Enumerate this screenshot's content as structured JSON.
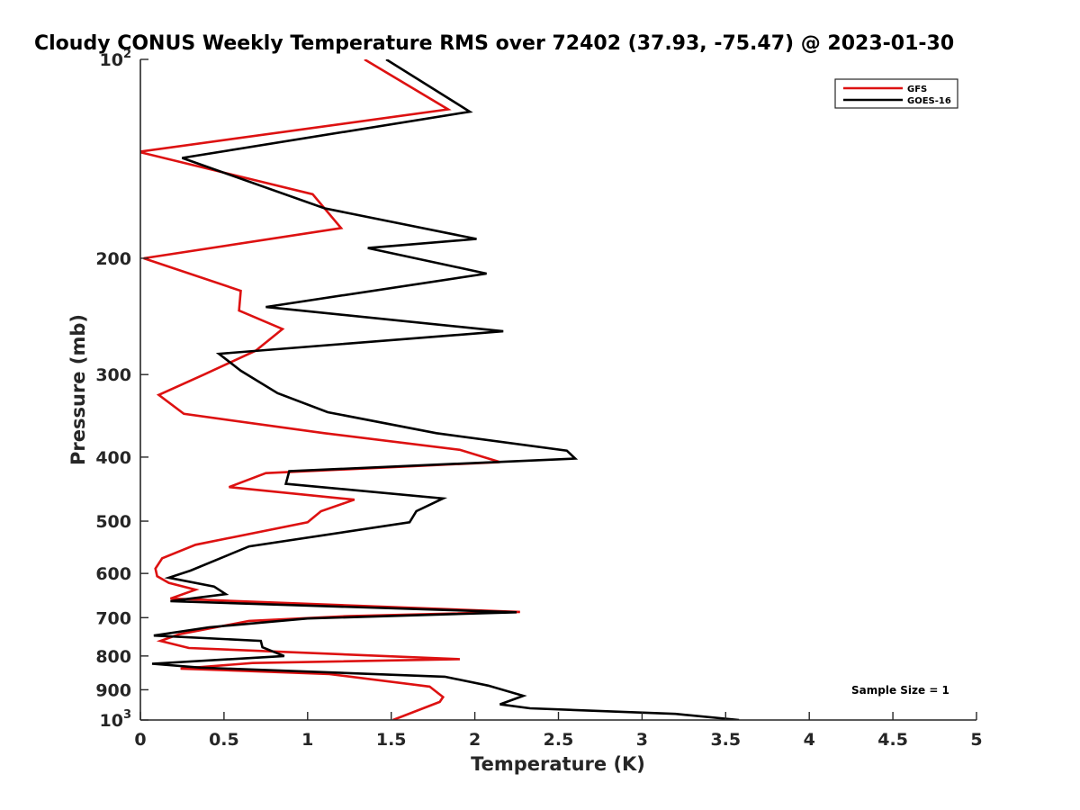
{
  "chart_data": {
    "type": "line",
    "title": "Cloudy CONUS Weekly Temperature RMS over 72402 (37.93, -75.47) @ 2023-01-30",
    "xlabel": "Temperature (K)",
    "ylabel": "Pressure (mb)",
    "xlim": [
      0,
      5
    ],
    "ylim": [
      100,
      1000
    ],
    "y_scale": "log",
    "y_direction": "reversed",
    "grid": false,
    "legend_position": "top-right",
    "x_ticks": [
      "0",
      "0.5",
      "1",
      "1.5",
      "2",
      "2.5",
      "3",
      "3.5",
      "4",
      "4.5",
      "5"
    ],
    "y_ticks": [
      {
        "value": 100,
        "label": "10",
        "exp": "2"
      },
      {
        "value": 200,
        "label": "200",
        "exp": ""
      },
      {
        "value": 300,
        "label": "300",
        "exp": ""
      },
      {
        "value": 400,
        "label": "400",
        "exp": ""
      },
      {
        "value": 500,
        "label": "500",
        "exp": ""
      },
      {
        "value": 600,
        "label": "600",
        "exp": ""
      },
      {
        "value": 700,
        "label": "700",
        "exp": ""
      },
      {
        "value": 800,
        "label": "800",
        "exp": ""
      },
      {
        "value": 900,
        "label": "900",
        "exp": ""
      },
      {
        "value": 1000,
        "label": "10",
        "exp": "3"
      }
    ],
    "series": [
      {
        "name": "GFS",
        "color": "#dd1111",
        "points": [
          [
            1.34,
            100
          ],
          [
            1.84,
            119
          ],
          [
            -0.01,
            138
          ],
          [
            1.03,
            160
          ],
          [
            1.2,
            180
          ],
          [
            0.02,
            200
          ],
          [
            0.6,
            224
          ],
          [
            0.59,
            240
          ],
          [
            0.85,
            256
          ],
          [
            0.69,
            276
          ],
          [
            0.38,
            300
          ],
          [
            0.11,
            322
          ],
          [
            0.26,
            344
          ],
          [
            1.1,
            368
          ],
          [
            1.91,
            390
          ],
          [
            2.15,
            407
          ],
          [
            0.75,
            423
          ],
          [
            0.53,
            444
          ],
          [
            1.28,
            464
          ],
          [
            1.08,
            483
          ],
          [
            1.0,
            502
          ],
          [
            0.33,
            543
          ],
          [
            0.13,
            569
          ],
          [
            0.09,
            590
          ],
          [
            0.1,
            606
          ],
          [
            0.17,
            620
          ],
          [
            0.33,
            635
          ],
          [
            0.18,
            655
          ],
          [
            2.27,
            686
          ],
          [
            1.25,
            696
          ],
          [
            0.65,
            708
          ],
          [
            0.23,
            742
          ],
          [
            0.12,
            759
          ],
          [
            0.29,
            778
          ],
          [
            1.91,
            809
          ],
          [
            0.67,
            820
          ],
          [
            0.24,
            836
          ],
          [
            1.13,
            852
          ],
          [
            1.73,
            890
          ],
          [
            1.81,
            923
          ],
          [
            1.79,
            939
          ],
          [
            1.51,
            1000
          ]
        ]
      },
      {
        "name": "GOES-16",
        "color": "#000000",
        "points": [
          [
            1.47,
            100
          ],
          [
            1.97,
            120
          ],
          [
            0.25,
            141
          ],
          [
            1.1,
            168
          ],
          [
            2.01,
            187
          ],
          [
            1.36,
            193
          ],
          [
            2.07,
            211
          ],
          [
            0.75,
            237
          ],
          [
            2.17,
            258
          ],
          [
            0.47,
            279
          ],
          [
            0.6,
            296
          ],
          [
            0.82,
            320
          ],
          [
            1.12,
            342
          ],
          [
            1.77,
            368
          ],
          [
            2.55,
            391
          ],
          [
            2.6,
            402
          ],
          [
            0.89,
            420
          ],
          [
            0.87,
            439
          ],
          [
            1.81,
            462
          ],
          [
            1.65,
            483
          ],
          [
            1.61,
            502
          ],
          [
            0.65,
            546
          ],
          [
            0.3,
            594
          ],
          [
            0.17,
            609
          ],
          [
            0.44,
            628
          ],
          [
            0.51,
            645
          ],
          [
            0.28,
            656
          ],
          [
            0.18,
            661
          ],
          [
            2.25,
            687
          ],
          [
            1.0,
            702
          ],
          [
            0.41,
            724
          ],
          [
            0.08,
            745
          ],
          [
            0.72,
            759
          ],
          [
            0.73,
            776
          ],
          [
            0.86,
            800
          ],
          [
            0.07,
            822
          ],
          [
            0.36,
            833
          ],
          [
            1.82,
            860
          ],
          [
            2.08,
            887
          ],
          [
            2.29,
            919
          ],
          [
            2.15,
            947
          ],
          [
            2.33,
            960
          ],
          [
            3.2,
            979
          ],
          [
            3.58,
            1000
          ]
        ]
      }
    ],
    "annotation": "Sample Size = 1"
  }
}
